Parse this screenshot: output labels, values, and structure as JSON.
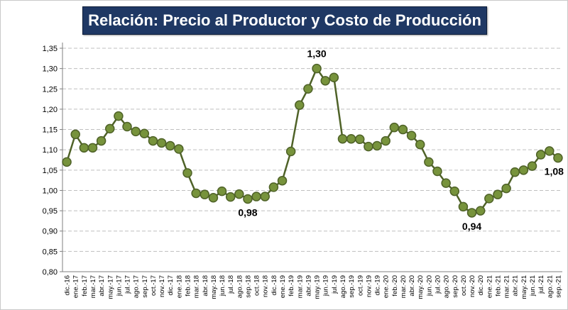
{
  "chart_data": {
    "type": "line",
    "title": "Relación: Precio al Productor y Costo de Producción",
    "xlabel": "",
    "ylabel": "",
    "ylim": [
      0.8,
      1.35
    ],
    "yticks": [
      "0,80",
      "0,85",
      "0,90",
      "0,95",
      "1,00",
      "1,05",
      "1,10",
      "1,15",
      "1,20",
      "1,25",
      "1,30",
      "1,35"
    ],
    "grid": true,
    "legend": "none",
    "colors": {
      "line": "#4f6228",
      "marker_fill": "#77933c",
      "marker_edge": "#4f6228",
      "title_bg": "#1f3864"
    },
    "categories": [
      "dic.-16",
      "ene.-17",
      "feb.-17",
      "mar.-17",
      "abr.-17",
      "may.-17",
      "jun.-17",
      "jul.-17",
      "ago.-17",
      "sep.-17",
      "oct.-17",
      "nov.-17",
      "dic.-17",
      "ene.-18",
      "feb.-18",
      "mar.-18",
      "abr.-18",
      "may.-18",
      "jun.-18",
      "jul.-18",
      "ago.-18",
      "sep.-18",
      "oct.-18",
      "nov.-18",
      "dic.-18",
      "ene.-19",
      "feb.-19",
      "mar.-19",
      "abr.-19",
      "may.-19",
      "jun.-19",
      "jul.-19",
      "ago.-19",
      "sep.-19",
      "oct.-19",
      "nov.-19",
      "dic.-19",
      "ene.-20",
      "feb.-20",
      "mar.-20",
      "abr.-20",
      "may.-20",
      "jun.-20",
      "jul.-20",
      "ago.-20",
      "sep.-20",
      "oct.-20",
      "nov.-20",
      "dic.-20",
      "ene.-21",
      "feb.-21",
      "mar.-21",
      "abr.-21",
      "may.-21",
      "jun.-21",
      "jul.-21",
      "ago.-21",
      "sep.-21"
    ],
    "series": [
      {
        "values": [
          1.07,
          1.138,
          1.105,
          1.105,
          1.122,
          1.152,
          1.183,
          1.157,
          1.145,
          1.14,
          1.122,
          1.117,
          1.11,
          1.102,
          1.043,
          0.993,
          0.99,
          0.982,
          0.998,
          0.984,
          0.991,
          0.979,
          0.985,
          0.985,
          1.008,
          1.024,
          1.096,
          1.21,
          1.25,
          1.3,
          1.27,
          1.278,
          1.127,
          1.127,
          1.126,
          1.108,
          1.11,
          1.122,
          1.155,
          1.15,
          1.135,
          1.113,
          1.07,
          1.047,
          1.018,
          0.998,
          0.96,
          0.945,
          0.95,
          0.98,
          0.99,
          1.005,
          1.045,
          1.05,
          1.06,
          1.088,
          1.097,
          1.08
        ]
      }
    ],
    "annotations": [
      {
        "index": 29,
        "text": "1,30"
      },
      {
        "index": 21,
        "text": "0,98"
      },
      {
        "index": 47,
        "text": "0,94"
      },
      {
        "index": 57,
        "text": "1,08"
      }
    ]
  }
}
